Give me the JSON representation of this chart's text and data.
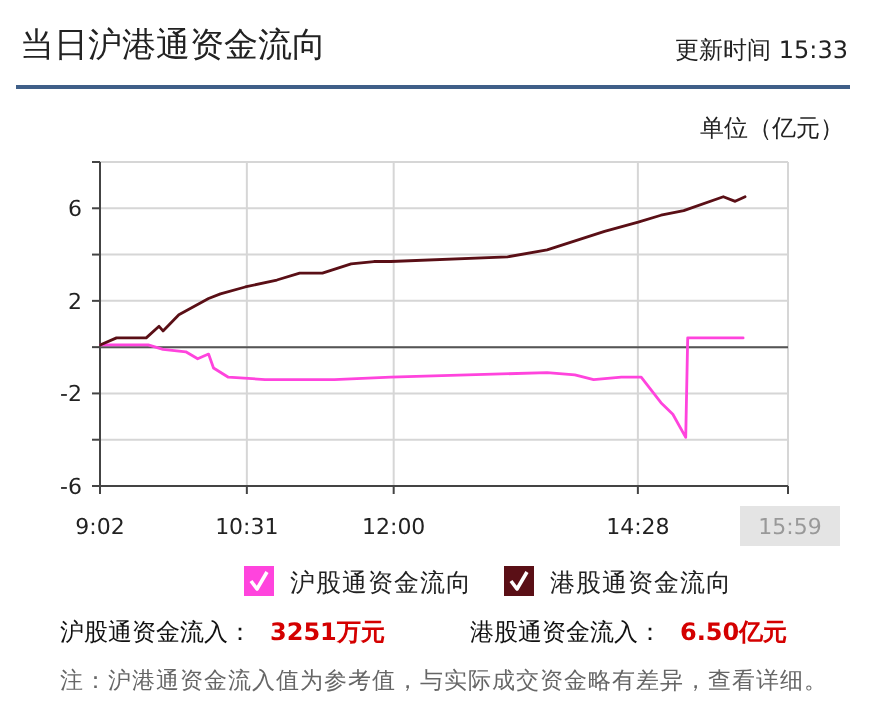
{
  "chart_data": {
    "type": "line",
    "title": "当日沪港通资金流向",
    "ylabel": "单位（亿元）",
    "xlim": [
      9.0333,
      15.9833
    ],
    "xticks": [
      {
        "value": 9.0333,
        "label": "9:02"
      },
      {
        "value": 10.5167,
        "label": "10:31"
      },
      {
        "value": 12,
        "label": "12:00"
      },
      {
        "value": 14.4667,
        "label": "14:28"
      },
      {
        "value": 15.9833,
        "label": "15:59"
      }
    ],
    "ylim": [
      -6,
      8
    ],
    "yticks": [
      -6,
      {
        "value": -4,
        "label": null
      },
      -2,
      {
        "value": 0,
        "label": null
      },
      2,
      {
        "value": 4,
        "label": null
      },
      6,
      {
        "value": 8,
        "label": null
      }
    ],
    "grid": true,
    "legend": "bottom",
    "ref_lines": [
      {
        "axis": "y",
        "value": 0,
        "color": "#555555"
      }
    ],
    "series": [
      {
        "name": "沪股通资金流向",
        "color": "#ff44dd",
        "x": [
          9.04,
          9.18,
          9.52,
          9.67,
          9.9,
          10.02,
          10.13,
          10.18,
          10.33,
          10.7,
          11.4,
          11.97,
          13.55,
          13.83,
          14.02,
          14.3,
          14.5,
          14.7,
          14.82,
          14.95,
          14.97,
          15.53
        ],
        "values": [
          0.1,
          0.1,
          0.1,
          -0.1,
          -0.2,
          -0.5,
          -0.3,
          -0.9,
          -1.3,
          -1.4,
          -1.4,
          -1.3,
          -1.1,
          -1.2,
          -1.4,
          -1.3,
          -1.3,
          -2.4,
          -2.9,
          -3.9,
          0.4,
          0.4
        ]
      },
      {
        "name": "港股通资金流向",
        "color": "#5a0f16",
        "x": [
          9.04,
          9.2,
          9.5,
          9.63,
          9.67,
          9.83,
          10.13,
          10.25,
          10.5,
          10.82,
          11.05,
          11.28,
          11.57,
          11.8,
          11.97,
          13.15,
          13.55,
          14.13,
          14.47,
          14.7,
          14.93,
          15.33,
          15.45,
          15.55
        ],
        "values": [
          0.1,
          0.4,
          0.4,
          0.9,
          0.7,
          1.4,
          2.1,
          2.3,
          2.6,
          2.9,
          3.2,
          3.2,
          3.6,
          3.7,
          3.7,
          3.9,
          4.2,
          5.0,
          5.4,
          5.7,
          5.9,
          6.5,
          6.3,
          6.5
        ]
      }
    ],
    "annotations": [
      "更新时间 15:33",
      "沪股通资金流入：",
      "3251万元",
      "港股通资金流入：",
      "6.50亿元",
      "注：沪港通资金流入值为参考值，与实际成交资金略有差异，查看详细。"
    ]
  }
}
